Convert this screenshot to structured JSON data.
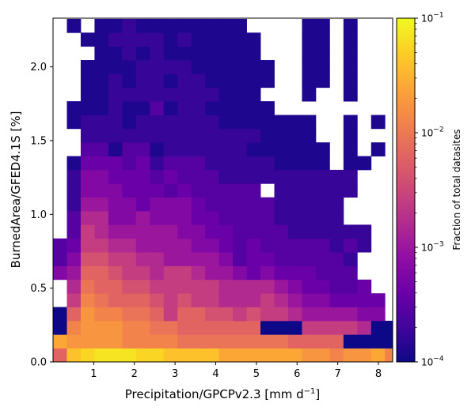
{
  "chart_data": {
    "type": "heatmap",
    "title": "",
    "xlabel_main": "Precipitation/GPCPv2.3 [mm d",
    "xlabel_sup": "−1",
    "xlabel_end": "]",
    "ylabel": "BurnedArea/GFED4.1S [%]",
    "colorbar_label": "Fraction of total datasites",
    "colorscale": "plasma",
    "log_color": true,
    "x_range": [
      0,
      8.35
    ],
    "y_range": [
      0,
      2.33
    ],
    "x_bin_width": 0.34,
    "y_bin_width": 0.093,
    "x_ticks": [
      1,
      2,
      3,
      4,
      5,
      6,
      7,
      8
    ],
    "x_tick_labels": [
      "1",
      "2",
      "3",
      "4",
      "5",
      "6",
      "7",
      "8"
    ],
    "y_ticks": [
      0.0,
      0.5,
      1.0,
      1.5,
      2.0
    ],
    "y_tick_labels": [
      "0.0",
      "0.5",
      "1.0",
      "1.5",
      "2.0"
    ],
    "colorbar_ticks": [
      -4,
      -3,
      -2,
      -1
    ],
    "colorbar_major_labels": [
      {
        "base": "10",
        "exp": "−4"
      },
      {
        "base": "10",
        "exp": "−3"
      },
      {
        "base": "10",
        "exp": "−2"
      },
      {
        "base": "10",
        "exp": "−1"
      }
    ],
    "log10_fraction_rows_bottom_to_top": [
      "A F G H H H G G F F F F E E E E E E D D C D D E C",
      "E D D D D C C C C B B B B B B B B A A A A . . 0 0",
      "0 C D D D C C B B A A A A A A . . . 8 8 8 8 7 0 0",
      "0 A D C C B B A 8 A A 9 9 8 9 8 8 7 6 6 6 6 5 5 #",
      "# 8 C B A A A 9 8 9 8 8 7 7 7 8 7 6 5 5 4 4 4 4 #",
      "# 7 B A A 9 9 8 8 8 8 8 7 7 7 7 6 5 4 4 3 3 4 # #",
      "5 6 A A 9 8 8 7 8 8 7 6 6 5 4 5 4 4 4 3 3 3 # # #",
      "3 5 9 9 8 8 7 7 6 6 6 6 5 3 4 4 3 3 3 3 3 2 # # #",
      "3 4 8 8 7 7 6 6 6 6 5 5 4 3 4 3 3 3 3 3 2 3 2 # #",
      "# 3 8 7 6 6 6 6 6 5 5 4 4 3 3 3 3 2 2 2 2 2 2 # #",
      "# 3 7 7 5 5 6 5 5 5 4 4 3 3 3 3 2 2 2 2 2 # # # #",
      "# 2 6 6 5 5 4 5 5 5 4 3 3 3 3 3 2 2 2 2 2 # # # #",
      "# 2 5 5 5 4 4 4 3 4 3 3 3 3 3 # 2 2 2 2 2 2 # # #",
      "# 2 5 5 4 4 4 3 4 3 3 3 2 2 2 2 2 2 2 2 2 2 # # #",
      "# 1 4 4 4 3 4 2 3 3 3 2 2 2 2 2 1 1 1 1 # 1 1 # #",
      "# # 3 3 1 3 3 1 2 2 2 2 2 2 1 1 1 1 1 1 # 1 # 1 #",
      "# # 2 2 2 2 2 2 2 2 2 2 2 2 2 1 1 1 1 # # 1 # # #",
      "# 1 2 2 2 1 2 2 2 2 2 2 1 1 1 1 1 1 1 # # 1 # 1 #",
      "# 1 1 1 2 1 1 3 1 2 2 1 1 1 1 1 # # # # # # # # #",
      "# # 1 1 2 2 2 2 2 2 2 2 1 1 1 # # # 1 # # 1 # # #",
      "# # 1 1 2 1 2 2 1 2 2 1 1 1 1 1 # # 1 1 # 1 # # #",
      "# # 1 1 1 1 2 2 2 2 1 1 1 1 1 1 # # 1 1 # 1 # # #",
      "# # # 1 1 2 1 2 1 1 1 1 1 1 1 # # # 1 1 # 1 # # #",
      "# # 1 1 2 2 2 2 1 2 1 1 1 1 1 # # # 1 1 # 1 # # #",
      "# 1 # 1 1 2 1 1 1 1 1 1 1 1 # # # # 1 1 # 1 # # #"
    ],
    "value_key": {
      "0": -4.0,
      "1": -3.9,
      "2": -3.75,
      "3": -3.55,
      "4": -3.4,
      "5": -3.2,
      "6": -3.0,
      "7": -2.8,
      "8": -2.6,
      "9": -2.4,
      "A": -2.2,
      "B": -2.05,
      "C": -1.9,
      "D": -1.75,
      "E": -1.6,
      "F": -1.4,
      "G": -1.25,
      "H": -1.15,
      ".": -4.0,
      "#": null
    }
  }
}
